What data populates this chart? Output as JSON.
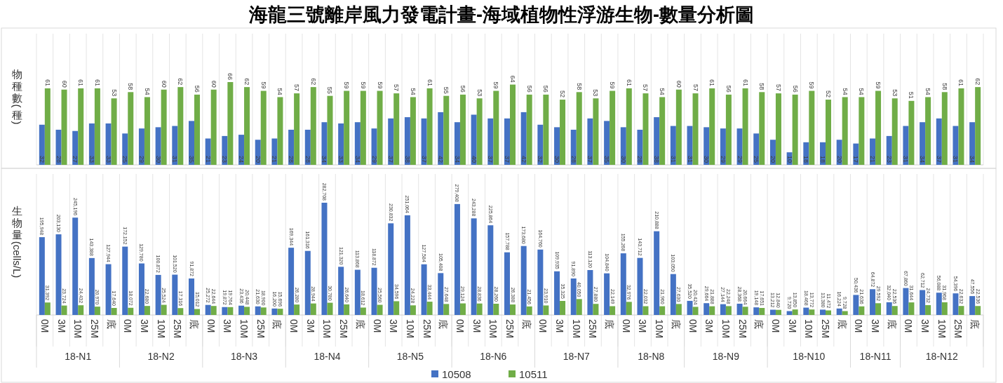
{
  "chart_data": [
    {
      "type": "bar",
      "title": "海龍三號離岸風力發電計畫-海域植物性浮游生物-數量分析圖",
      "ylabel": "物種數(種)",
      "tick_labels": false,
      "grid": "x",
      "data_labels": true,
      "categories": [
        null,
        null,
        null,
        null,
        null,
        null,
        null,
        null,
        null,
        null,
        null,
        null,
        null,
        null,
        null,
        null,
        null,
        null,
        null,
        null,
        null,
        null,
        null,
        null,
        null,
        null,
        null,
        null,
        null,
        null,
        null,
        null,
        null,
        null,
        null,
        null,
        null,
        null,
        null,
        null,
        null,
        null,
        null,
        null,
        null,
        null,
        null,
        null,
        null,
        null,
        null,
        null,
        null,
        null,
        null,
        null,
        null
      ],
      "series": [
        {
          "color": "#4472c4",
          "values": [
            32,
            28,
            27,
            33,
            33,
            25,
            29,
            30,
            31,
            35,
            21,
            23,
            24,
            20,
            21,
            28,
            28,
            34,
            33,
            34,
            29,
            37,
            38,
            37,
            42,
            34,
            40,
            37,
            37,
            42,
            32,
            30,
            28,
            37,
            35,
            30,
            28,
            38,
            31,
            31,
            30,
            29,
            29,
            25,
            20,
            10,
            18,
            18,
            20,
            17,
            21,
            23,
            31,
            34,
            37,
            31,
            34
          ]
        },
        {
          "color": "#70ad47",
          "values": [
            61,
            60,
            61,
            61,
            53,
            58,
            54,
            60,
            62,
            56,
            60,
            66,
            62,
            59,
            54,
            57,
            62,
            55,
            59,
            59,
            59,
            57,
            54,
            61,
            55,
            56,
            53,
            59,
            64,
            56,
            56,
            52,
            58,
            53,
            59,
            61,
            57,
            54,
            60,
            57,
            61,
            56,
            61,
            58,
            57,
            56,
            59,
            52,
            54,
            54,
            59,
            53,
            51,
            54,
            58,
            61,
            62
          ]
        }
      ]
    },
    {
      "type": "bar",
      "ylabel": "生物量(cells/L)",
      "grid": "x",
      "legend": "bottom",
      "categories": [
        "0M",
        "3M",
        "10M",
        "25M",
        "底",
        "0M",
        "3M",
        "10M",
        "25M",
        "底",
        "0M",
        "3M",
        "10M",
        "25M",
        "底",
        "0M",
        "3M",
        "10M",
        "25M",
        "底",
        "0M",
        "3M",
        "10M",
        "25M",
        "底",
        "0M",
        "3M",
        "10M",
        "25M",
        "底",
        "0M",
        "3M",
        "10M",
        "25M",
        "底",
        "0M",
        "3M",
        "10M",
        "底",
        "0M",
        "3M",
        "10M",
        "25M",
        "底",
        "0M",
        "3M",
        "10M",
        "25M",
        "底",
        "0M",
        "3M",
        "底",
        "0M",
        "3M",
        "10M",
        "25M",
        "底"
      ],
      "annotations": [
        "18-N1",
        "18-N2",
        "18-N3",
        "18-N4",
        "18-N5",
        "18-N6",
        "18-N7",
        "18-N8",
        "18-N9",
        "18-N10",
        "18-N11",
        "18-N12"
      ],
      "series": [
        {
          "name": "10508",
          "color": "#4472c4",
          "values": [
            195948,
            203130,
            245196,
            143388,
            127944,
            172152,
            129780,
            100872,
            101520,
            91872,
            25272,
            19872,
            23436,
            21630,
            16200,
            169344,
            161316,
            282708,
            121320,
            113868,
            118872,
            230832,
            251064,
            127584,
            105408,
            279408,
            243288,
            225864,
            157788,
            173680,
            164760,
            109935,
            91890,
            113120,
            104840,
            155268,
            143712,
            210888,
            103050,
            35520,
            29664,
            27144,
            28368,
            19148,
            13212,
            9720,
            18468,
            13380,
            16224,
            50436,
            64872,
            32040,
            67860,
            62712,
            56088,
            54396,
            47556
          ],
          "value_labels": [
            "195,948",
            "203,130",
            "245,196",
            "143,388",
            "127,944",
            "172,152",
            "129,780",
            "100,872",
            "101,520",
            "91,872",
            "25,272",
            "19,872",
            "23,436",
            "21,630",
            "16,200",
            "169,344",
            "161,316",
            "282,708",
            "121,320",
            "113,868",
            "118,872",
            "230,832",
            "251,064",
            "127,584",
            "105,408",
            "279,408",
            "243,288",
            "225,864",
            "157,788",
            "173,680",
            "164,760",
            "109,935",
            "91,890",
            "113,120",
            "104,840",
            "155,268",
            "143,712",
            "210,888",
            "103,050",
            "35,520",
            "29,664",
            "27,144",
            "28,368",
            "19,148",
            "13,212",
            "9,720",
            "18,468",
            "13,380",
            "16,224",
            "50,436",
            "64,872",
            "32,040",
            "67,860",
            "62,712",
            "56,088",
            "54,396",
            "47,556"
          ]
        },
        {
          "name": "10511",
          "color": "#70ad47",
          "values": [
            31392,
            23724,
            24432,
            20970,
            17640,
            18072,
            22680,
            25524,
            17316,
            15012,
            22644,
            19764,
            20448,
            18900,
            15696,
            26280,
            28944,
            30780,
            26640,
            18612,
            25560,
            34596,
            24228,
            33444,
            27648,
            29124,
            28836,
            28260,
            26388,
            21456,
            23910,
            35325,
            40050,
            27880,
            22149,
            32976,
            22032,
            21960,
            27630,
            20424,
            21888,
            22248,
            20664,
            17651,
            12840,
            13850,
            13772,
            11472,
            9728,
            21636,
            29592,
            22536,
            31644,
            24732,
            31968,
            22632,
            22536
          ],
          "value_labels": [
            "31,392",
            "23,724",
            "24,432",
            "20,970",
            "17,640",
            "18,072",
            "22,680",
            "25,524",
            "17,316",
            "15,012",
            "22,644",
            "19,764",
            "20,448",
            "18,900",
            "15,696",
            "26,280",
            "28,944",
            "30,780",
            "26,640",
            "18,612",
            "25,560",
            "34,596",
            "24,228",
            "33,444",
            "27,648",
            "29,124",
            "28,836",
            "28,260",
            "26,388",
            "21,456",
            "23,910",
            "35,325",
            "40,050",
            "27,880",
            "22,149",
            "32,976",
            "22,032",
            "21,960",
            "27,630",
            "20,424",
            "21,888",
            "22,248",
            "20,664",
            "17,651",
            "12,840",
            "13,850",
            "13,772",
            "11,472",
            "9,728",
            "21,636",
            "29,592",
            "22,536",
            "31,644",
            "24,732",
            "31,968",
            "22,632",
            "22,536"
          ]
        }
      ]
    }
  ]
}
